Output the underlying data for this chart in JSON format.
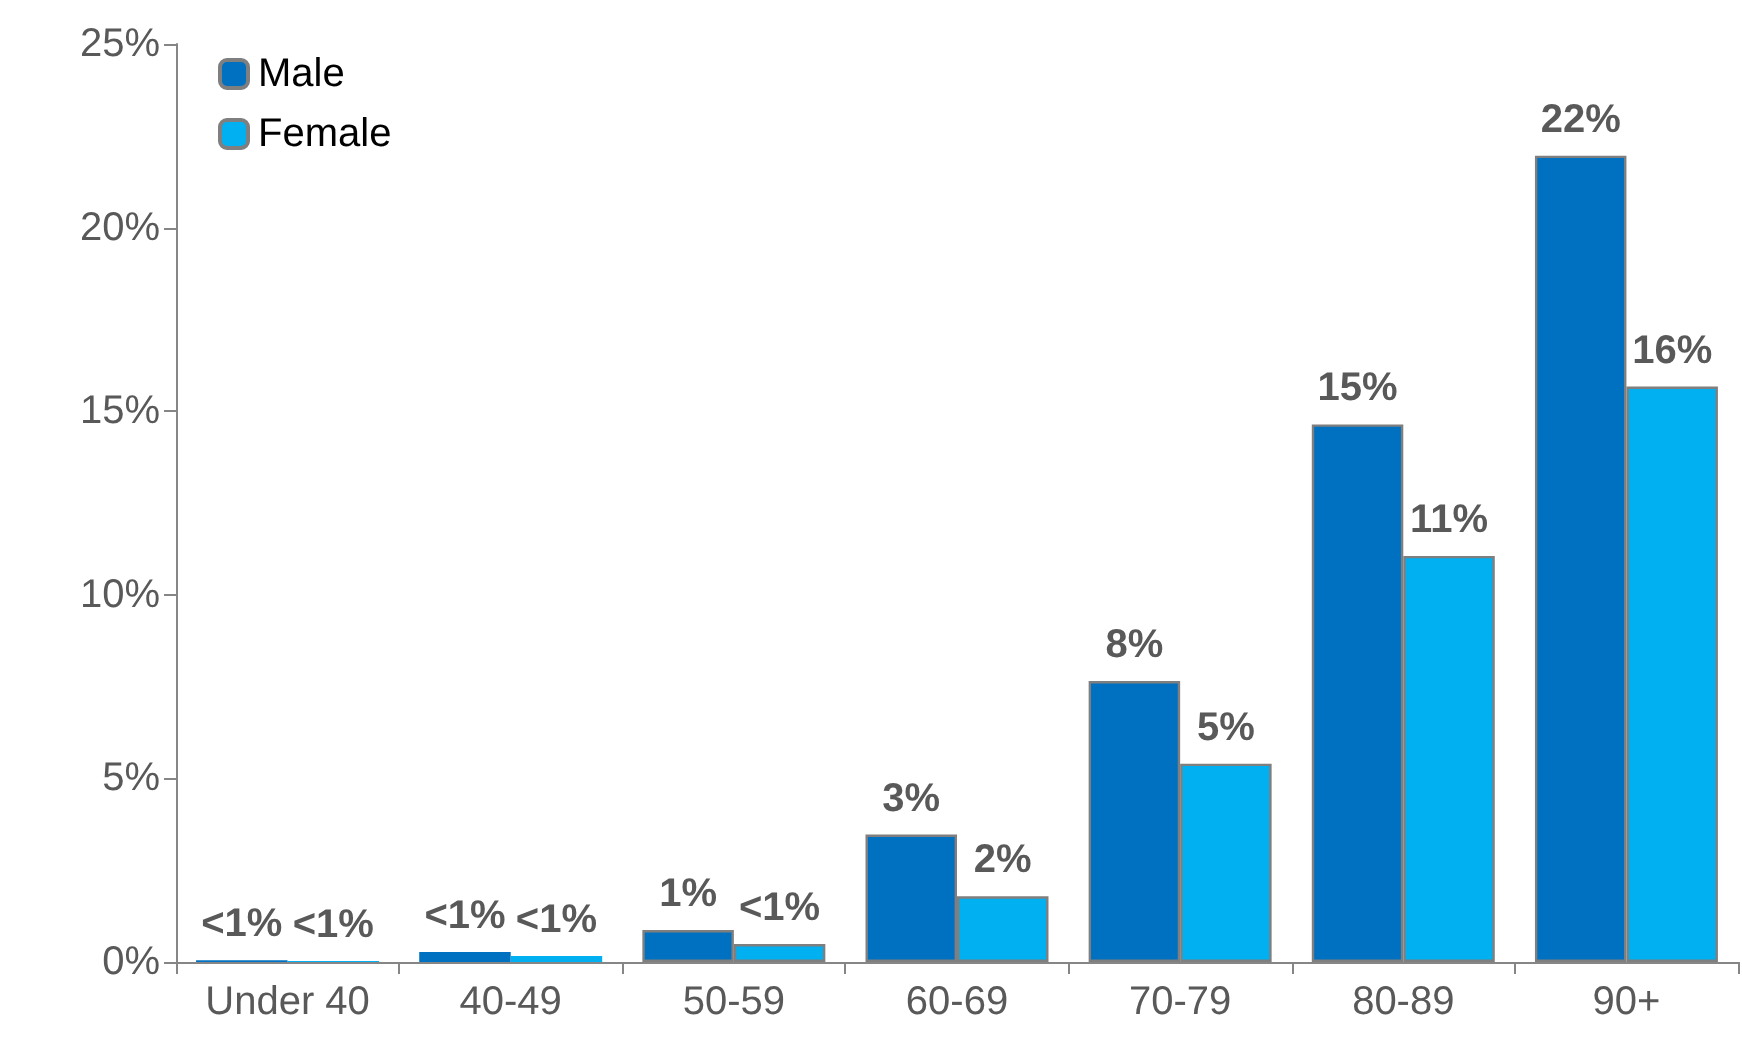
{
  "chart_data": {
    "type": "bar",
    "categories": [
      "Under 40",
      "40-49",
      "50-59",
      "60-69",
      "70-79",
      "80-89",
      "90+"
    ],
    "series": [
      {
        "name": "Male",
        "color": "#0070c0",
        "values": [
          0.05,
          0.27,
          0.87,
          3.47,
          7.65,
          14.64,
          21.96
        ],
        "value_labels": [
          "<1%",
          "<1%",
          "1%",
          "3%",
          "8%",
          "15%",
          "22%"
        ]
      },
      {
        "name": "Female",
        "color": "#00b0f0",
        "values": [
          0.03,
          0.16,
          0.49,
          1.79,
          5.4,
          11.06,
          15.67
        ],
        "value_labels": [
          "<1%",
          "<1%",
          "<1%",
          "2%",
          "5%",
          "11%",
          "16%"
        ]
      }
    ],
    "ylim": [
      0,
      25
    ],
    "yticks": [
      {
        "value": 0,
        "label": "0%"
      },
      {
        "value": 5,
        "label": "5%"
      },
      {
        "value": 10,
        "label": "10%"
      },
      {
        "value": 15,
        "label": "15%"
      },
      {
        "value": 20,
        "label": "20%"
      },
      {
        "value": 25,
        "label": "25%"
      }
    ],
    "grid": false,
    "legend": "top left"
  }
}
